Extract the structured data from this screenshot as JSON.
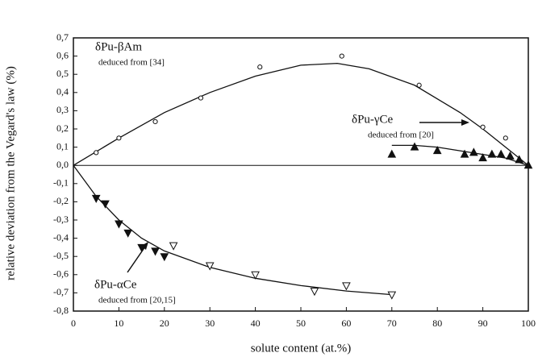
{
  "chart_data": {
    "type": "scatter",
    "xlabel": "solute content (at.%)",
    "ylabel": "relative deviation from the Vegard's law (%)",
    "xlim": [
      0,
      100
    ],
    "xticks": [
      0,
      10,
      20,
      30,
      40,
      50,
      60,
      70,
      80,
      90,
      100
    ],
    "ylim": [
      -0.8,
      0.7
    ],
    "yticks": [
      {
        "value": 0.7,
        "label": "0,7"
      },
      {
        "value": 0.6,
        "label": "0,6"
      },
      {
        "value": 0.5,
        "label": "0,5"
      },
      {
        "value": 0.4,
        "label": "0,4"
      },
      {
        "value": 0.3,
        "label": "0,3"
      },
      {
        "value": 0.2,
        "label": "0,2"
      },
      {
        "value": 0.1,
        "label": "0,1"
      },
      {
        "value": 0.0,
        "label": "0,0"
      },
      {
        "value": -0.1,
        "label": "-0,1"
      },
      {
        "value": -0.2,
        "label": "-0,2"
      },
      {
        "value": -0.3,
        "label": "-0,3"
      },
      {
        "value": -0.4,
        "label": "-0,4"
      },
      {
        "value": -0.5,
        "label": "-0,5"
      },
      {
        "value": -0.6,
        "label": "-0,6"
      },
      {
        "value": -0.7,
        "label": "-0,7"
      },
      {
        "value": -0.8,
        "label": "-0,8"
      }
    ],
    "color": "#111111",
    "series": [
      {
        "name": "δPu-βAm",
        "source": "deduced from [34]",
        "marker": "circle",
        "x": [
          5,
          10,
          18,
          28,
          41,
          59,
          76,
          90,
          95
        ],
        "values": [
          0.07,
          0.15,
          0.24,
          0.37,
          0.54,
          0.6,
          0.44,
          0.21,
          0.15
        ],
        "filled": [
          false,
          false,
          false,
          false,
          false,
          false,
          false,
          false,
          false
        ],
        "fit_x": [
          0,
          10,
          20,
          30,
          40,
          50,
          58,
          65,
          75,
          85,
          90,
          95,
          100
        ],
        "fit_values": [
          0,
          0.15,
          0.29,
          0.4,
          0.49,
          0.55,
          0.56,
          0.53,
          0.44,
          0.29,
          0.2,
          0.1,
          0
        ]
      },
      {
        "name": "δPu-γCe",
        "source": "deduced from [20]",
        "marker": "triangle-up",
        "x": [
          70,
          75,
          80,
          86,
          88,
          90,
          92,
          94,
          96,
          98,
          100
        ],
        "values": [
          0.06,
          0.1,
          0.08,
          0.06,
          0.07,
          0.04,
          0.06,
          0.06,
          0.05,
          0.03,
          0
        ],
        "filled": [
          true,
          true,
          true,
          true,
          true,
          true,
          true,
          true,
          true,
          true,
          true
        ],
        "fit_x": [
          70,
          75,
          80,
          85,
          90,
          95,
          100
        ],
        "fit_values": [
          0.11,
          0.11,
          0.1,
          0.08,
          0.06,
          0.04,
          0
        ]
      },
      {
        "name": "δPu-αCe",
        "source": "deduced from [20,15]",
        "marker": "triangle-down",
        "x": [
          5,
          7,
          10,
          12,
          15,
          18,
          20,
          22,
          30,
          40,
          53,
          60,
          70
        ],
        "values": [
          -0.18,
          -0.21,
          -0.32,
          -0.37,
          -0.45,
          -0.47,
          -0.5,
          -0.44,
          -0.55,
          -0.6,
          -0.69,
          -0.66,
          -0.71
        ],
        "filled": [
          true,
          true,
          true,
          true,
          true,
          true,
          true,
          false,
          false,
          false,
          false,
          false,
          false
        ],
        "fit_x": [
          0,
          5,
          10,
          15,
          20,
          30,
          40,
          50,
          60,
          70
        ],
        "fit_values": [
          0,
          -0.17,
          -0.3,
          -0.4,
          -0.47,
          -0.56,
          -0.62,
          -0.66,
          -0.69,
          -0.71
        ]
      }
    ]
  }
}
